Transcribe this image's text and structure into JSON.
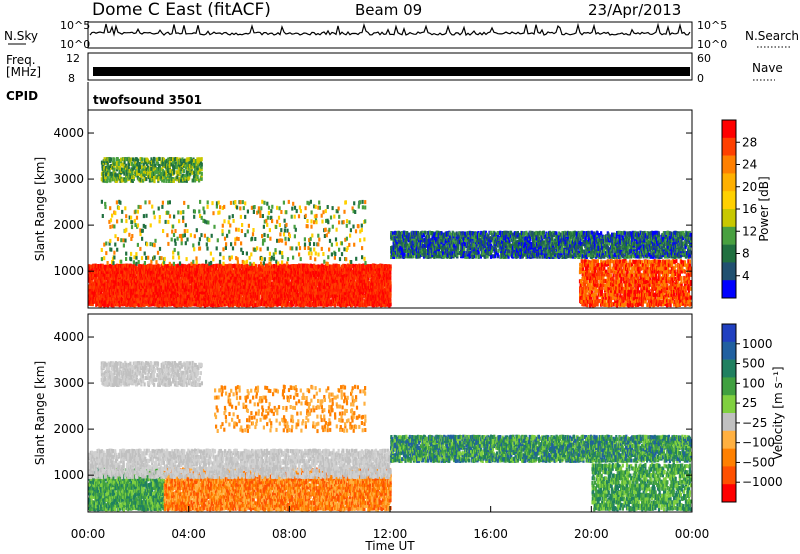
{
  "header": {
    "radar": "Dome C East (fitACF)",
    "beam": "Beam 09",
    "date": "23/Apr/2013"
  },
  "noise_panel": {
    "left_label": "N.Sky",
    "right_label": "N.Search",
    "tick_top": "10^5",
    "tick_bottom": "10^0"
  },
  "freq_panel": {
    "left_label_1": "Freq.",
    "left_label_2": "[MHz]",
    "right_label": "Nave",
    "left_tick_top": "12",
    "left_tick_bottom": "8",
    "right_tick_top": "60",
    "right_tick_bottom": "0"
  },
  "cpid_panel": {
    "label": "CPID",
    "value": "twofsound 3501"
  },
  "chart_data": [
    {
      "type": "heatmap",
      "quantity": "power",
      "ylabel": "Slant Range [km]",
      "ylim": [
        200,
        4500
      ],
      "yticks": [
        "1000",
        "2000",
        "3000",
        "4000"
      ],
      "xlim": [
        0,
        24
      ],
      "colorbar": {
        "label": "Power [dB]",
        "ticks": [
          "28",
          "24",
          "20",
          "16",
          "12",
          "8",
          "4"
        ],
        "colors": [
          "#ff0000",
          "#ff4000",
          "#ff8000",
          "#ffb000",
          "#ffd000",
          "#c8c800",
          "#48a040",
          "#207040",
          "#205070",
          "#0000ff"
        ]
      }
    },
    {
      "type": "heatmap",
      "quantity": "velocity",
      "ylabel": "Slant Range [km]",
      "ylim": [
        200,
        4500
      ],
      "yticks": [
        "1000",
        "2000",
        "3000",
        "4000"
      ],
      "xlim": [
        0,
        24
      ],
      "xticks": [
        "00:00",
        "04:00",
        "08:00",
        "12:00",
        "16:00",
        "20:00",
        "00:00"
      ],
      "xlabel": "Time UT",
      "colorbar": {
        "label": "Velocity [m s⁻¹]",
        "ticks": [
          "1000",
          "500",
          "100",
          "25",
          "−25",
          "−100",
          "−500",
          "−1000"
        ],
        "colors": [
          "#2040c0",
          "#2060a0",
          "#208060",
          "#40a040",
          "#80d040",
          "#c0c0c0",
          "#ffb040",
          "#ff8000",
          "#ff5000",
          "#ff0000"
        ]
      }
    }
  ]
}
